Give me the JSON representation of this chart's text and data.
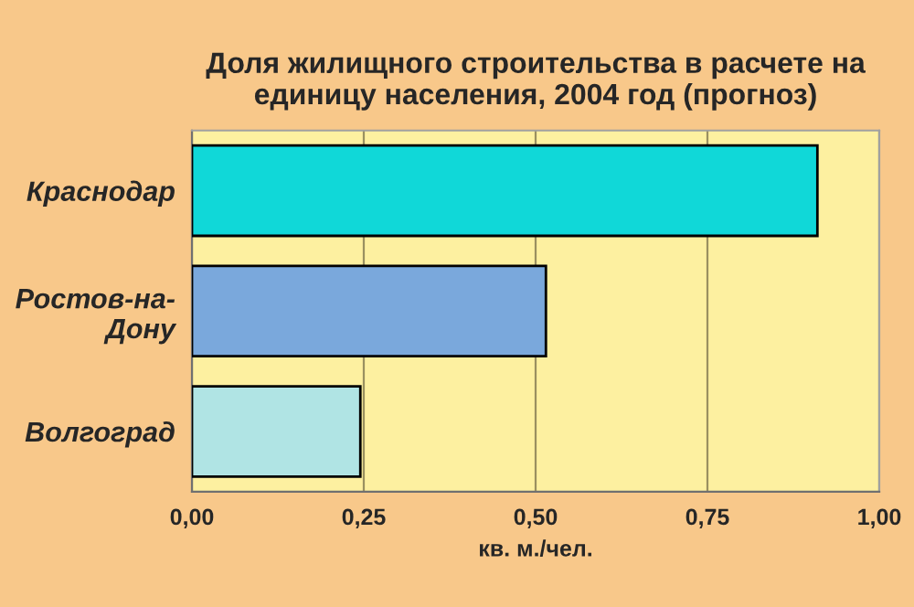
{
  "chart_data": {
    "type": "bar",
    "orientation": "horizontal",
    "title": "Доля жилищного строительства в расчете на единицу населения, 2004 год (прогноз)",
    "categories": [
      "Краснодар",
      "Ростов-на-Дону",
      "Волгоград"
    ],
    "values": [
      0.91,
      0.515,
      0.245
    ],
    "colors": [
      "#10d8d8",
      "#7aa8dc",
      "#b0e4e4"
    ],
    "xlabel": "кв. м./чел.",
    "xlim": [
      0,
      1
    ],
    "xticks": [
      {
        "value": 0,
        "label": "0,00"
      },
      {
        "value": 0.25,
        "label": "0,25"
      },
      {
        "value": 0.5,
        "label": "0,50"
      },
      {
        "value": 0.75,
        "label": "0,75"
      },
      {
        "value": 1,
        "label": "1,00"
      }
    ],
    "grid": "x"
  }
}
